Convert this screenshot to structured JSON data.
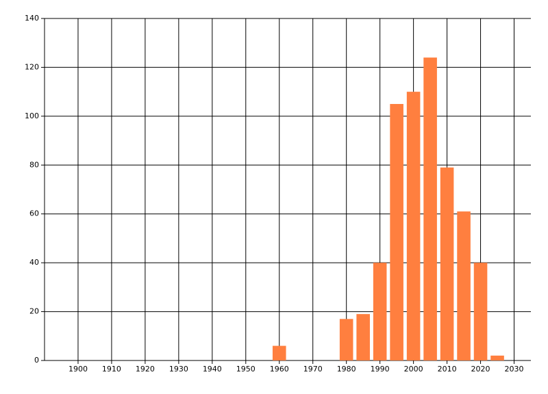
{
  "chart_data": {
    "type": "bar",
    "x": [
      1960,
      1980,
      1985,
      1990,
      1995,
      2000,
      2005,
      2010,
      2015,
      2020,
      2025
    ],
    "values": [
      6,
      17,
      19,
      40,
      105,
      110,
      124,
      79,
      61,
      40,
      2
    ],
    "color": "#ff7f3f",
    "xlim": [
      1890,
      2035
    ],
    "xticks": [
      1900,
      1910,
      1920,
      1930,
      1940,
      1950,
      1960,
      1970,
      1980,
      1990,
      2000,
      2010,
      2020,
      2030
    ],
    "ylim": [
      0,
      140
    ],
    "yticks": [
      0,
      20,
      40,
      60,
      80,
      100,
      120,
      140
    ],
    "grid": true
  }
}
